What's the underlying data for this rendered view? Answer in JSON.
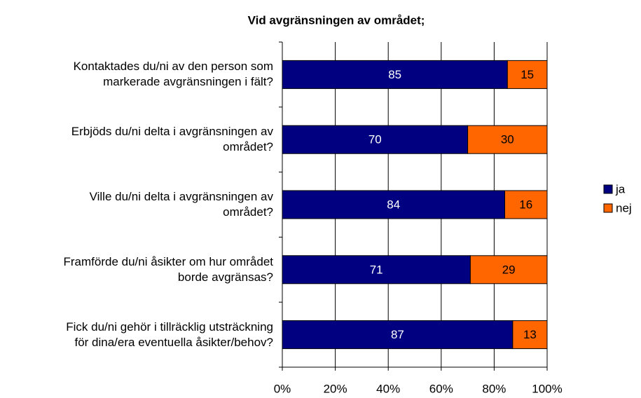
{
  "chart_data": {
    "type": "stacked-bar-horizontal",
    "title": "Vid avgränsningen av området;",
    "categories": [
      "Kontaktades du/ni av den person som\nmarkerade avgränsningen i fält?",
      "Erbjöds du/ni delta i avgränsningen av\nområdet?",
      "Ville du/ni delta i avgränsningen av\nområdet?",
      "Framförde du/ni åsikter om hur området\nborde avgränsas?",
      "Fick du/ni gehör i tillräcklig utsträckning\nför dina/era eventuella åsikter/behov?"
    ],
    "series": [
      {
        "name": "ja",
        "color": "#000080",
        "values": [
          85,
          70,
          84,
          71,
          87
        ]
      },
      {
        "name": "nej",
        "color": "#ff6600",
        "values": [
          15,
          30,
          16,
          29,
          13
        ]
      }
    ],
    "xlim": [
      0,
      100
    ],
    "xticks": [
      {
        "value": 0,
        "label": "0%"
      },
      {
        "value": 20,
        "label": "20%"
      },
      {
        "value": 40,
        "label": "40%"
      },
      {
        "value": 60,
        "label": "60%"
      },
      {
        "value": 80,
        "label": "80%"
      },
      {
        "value": 100,
        "label": "100%"
      }
    ],
    "grid": true,
    "legend": "right"
  }
}
